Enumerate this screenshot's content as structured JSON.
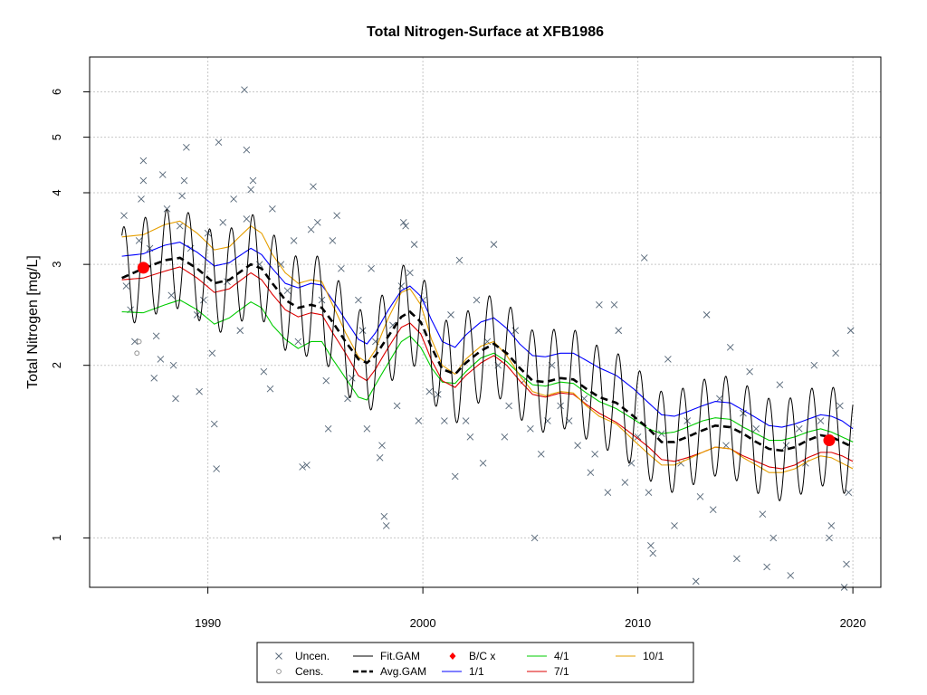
{
  "colors": {
    "fit_gam": "#000000",
    "avg_gam": "#000000",
    "bc": "#ff0000",
    "1/1": "#0000ff",
    "4/1": "#00cc00",
    "7/1": "#dd0000",
    "10/1": "#e69f00",
    "uncen": "#556677",
    "cens": "#888888",
    "grid": "#c8c8c8"
  },
  "chart_data": {
    "type": "line",
    "title": "Total Nitrogen-Surface at XFB1986",
    "xlabel": "",
    "ylabel": "Total Nitrogen [mg/L]",
    "log_y": true,
    "xlim": [
      1984.5,
      2021.3
    ],
    "ylim": [
      0.82,
      6.9
    ],
    "grid": true,
    "legend_position": "bottom-outside",
    "x_ticks": [
      1990,
      2000,
      2010,
      2020
    ],
    "x_tick_labels": [
      "1990",
      "2000",
      "2010",
      "2020"
    ],
    "y_ticks": [
      1,
      2,
      3,
      4,
      5,
      6
    ],
    "y_tick_labels": [
      "1",
      "2",
      "3",
      "4",
      "5",
      "6"
    ],
    "legend": [
      {
        "label": "Uncen.",
        "kind": "cross",
        "color_key": "uncen"
      },
      {
        "label": "Cens.",
        "kind": "circle",
        "color_key": "cens"
      },
      {
        "label": "Fit.GAM",
        "kind": "line",
        "color_key": "fit_gam"
      },
      {
        "label": "Avg.GAM",
        "kind": "dash",
        "color_key": "avg_gam"
      },
      {
        "label": "B/C x",
        "kind": "diamond",
        "color_key": "bc"
      },
      {
        "label": "1/1",
        "kind": "line",
        "color_key": "1/1"
      },
      {
        "label": "4/1",
        "kind": "line",
        "color_key": "4/1"
      },
      {
        "label": "7/1",
        "kind": "line",
        "color_key": "7/1"
      },
      {
        "label": "10/1",
        "kind": "line",
        "color_key": "10/1"
      }
    ],
    "avg_gam": {
      "x": [
        1986.0,
        1987.0,
        1988.0,
        1988.7,
        1989.5,
        1990.3,
        1991.0,
        1992.0,
        1992.5,
        1993.0,
        1993.6,
        1994.2,
        1994.8,
        1995.3,
        1995.8,
        1996.4,
        1997.0,
        1997.4,
        1997.8,
        1998.4,
        1999.0,
        1999.4,
        1999.9,
        2000.4,
        2000.9,
        2001.5,
        2002.0,
        2002.7,
        2003.3,
        2003.9,
        2004.5,
        2005.1,
        2005.7,
        2006.4,
        2007.0,
        2007.6,
        2008.2,
        2009.0,
        2009.8,
        2010.5,
        2011.1,
        2011.7,
        2012.3,
        2013.0,
        2013.6,
        2014.3,
        2014.9,
        2015.5,
        2016.1,
        2016.7,
        2017.3,
        2017.9,
        2018.5,
        2019.0,
        2019.5,
        2020.0
      ],
      "y": [
        2.84,
        2.95,
        3.05,
        3.08,
        2.95,
        2.78,
        2.82,
        3.0,
        2.95,
        2.78,
        2.6,
        2.52,
        2.55,
        2.52,
        2.38,
        2.2,
        2.05,
        2.02,
        2.08,
        2.25,
        2.43,
        2.48,
        2.38,
        2.15,
        1.97,
        1.93,
        2.02,
        2.12,
        2.18,
        2.1,
        1.98,
        1.88,
        1.87,
        1.9,
        1.89,
        1.82,
        1.76,
        1.72,
        1.63,
        1.55,
        1.47,
        1.47,
        1.5,
        1.54,
        1.57,
        1.56,
        1.52,
        1.47,
        1.43,
        1.42,
        1.44,
        1.48,
        1.51,
        1.5,
        1.47,
        1.44
      ]
    },
    "flow_1_1": {
      "x": [
        1986.0,
        1987.0,
        1988.0,
        1988.7,
        1989.5,
        1990.3,
        1991.0,
        1992.0,
        1992.5,
        1993.0,
        1993.6,
        1994.2,
        1994.8,
        1995.3,
        1995.8,
        1996.4,
        1997.0,
        1997.4,
        1997.8,
        1998.4,
        1999.0,
        1999.4,
        1999.9,
        2000.4,
        2000.9,
        2001.5,
        2002.0,
        2002.7,
        2003.3,
        2003.9,
        2004.5,
        2005.1,
        2005.7,
        2006.4,
        2007.0,
        2007.6,
        2008.2,
        2009.0,
        2009.8,
        2010.5,
        2011.1,
        2011.7,
        2012.3,
        2013.0,
        2013.6,
        2014.3,
        2014.9,
        2015.5,
        2016.1,
        2016.7,
        2017.3,
        2017.9,
        2018.5,
        2019.0,
        2019.5,
        2020.0
      ],
      "y": [
        3.1,
        3.13,
        3.24,
        3.28,
        3.15,
        2.98,
        3.02,
        3.2,
        3.12,
        2.95,
        2.78,
        2.73,
        2.78,
        2.76,
        2.6,
        2.4,
        2.22,
        2.18,
        2.28,
        2.5,
        2.7,
        2.75,
        2.64,
        2.4,
        2.2,
        2.15,
        2.26,
        2.38,
        2.42,
        2.32,
        2.18,
        2.08,
        2.07,
        2.1,
        2.1,
        2.04,
        1.98,
        1.92,
        1.82,
        1.72,
        1.64,
        1.63,
        1.66,
        1.7,
        1.73,
        1.72,
        1.67,
        1.62,
        1.57,
        1.56,
        1.58,
        1.61,
        1.64,
        1.63,
        1.6,
        1.55
      ]
    },
    "flow_4_1": {
      "x": [
        1986.0,
        1987.0,
        1988.0,
        1988.7,
        1989.5,
        1990.3,
        1991.0,
        1992.0,
        1992.5,
        1993.0,
        1993.6,
        1994.2,
        1994.8,
        1995.3,
        1995.8,
        1996.4,
        1997.0,
        1997.4,
        1997.8,
        1998.4,
        1999.0,
        1999.4,
        1999.9,
        2000.4,
        2000.9,
        2001.5,
        2002.0,
        2002.7,
        2003.3,
        2003.9,
        2004.5,
        2005.1,
        2005.7,
        2006.4,
        2007.0,
        2007.6,
        2008.2,
        2009.0,
        2009.8,
        2010.5,
        2011.1,
        2011.7,
        2012.3,
        2013.0,
        2013.6,
        2014.3,
        2014.9,
        2015.5,
        2016.1,
        2016.7,
        2017.3,
        2017.9,
        2018.5,
        2019.0,
        2019.5,
        2020.0
      ],
      "y": [
        2.48,
        2.47,
        2.55,
        2.6,
        2.5,
        2.36,
        2.42,
        2.58,
        2.52,
        2.35,
        2.22,
        2.14,
        2.2,
        2.2,
        2.05,
        1.9,
        1.76,
        1.74,
        1.85,
        2.02,
        2.2,
        2.25,
        2.15,
        1.98,
        1.87,
        1.86,
        1.95,
        2.06,
        2.1,
        2.03,
        1.93,
        1.85,
        1.84,
        1.87,
        1.86,
        1.79,
        1.73,
        1.68,
        1.61,
        1.55,
        1.52,
        1.53,
        1.56,
        1.6,
        1.62,
        1.61,
        1.56,
        1.52,
        1.48,
        1.48,
        1.5,
        1.53,
        1.55,
        1.53,
        1.5,
        1.47
      ]
    },
    "flow_7_1": {
      "x": [
        1986.0,
        1987.0,
        1988.0,
        1988.7,
        1989.5,
        1990.3,
        1991.0,
        1992.0,
        1992.5,
        1993.0,
        1993.6,
        1994.2,
        1994.8,
        1995.3,
        1995.8,
        1996.4,
        1997.0,
        1997.4,
        1997.8,
        1998.4,
        1999.0,
        1999.4,
        1999.9,
        2000.4,
        2000.9,
        2001.5,
        2002.0,
        2002.7,
        2003.3,
        2003.9,
        2004.5,
        2005.1,
        2005.7,
        2006.4,
        2007.0,
        2007.6,
        2008.2,
        2009.0,
        2009.8,
        2010.5,
        2011.1,
        2011.7,
        2012.3,
        2013.0,
        2013.6,
        2014.3,
        2014.9,
        2015.5,
        2016.1,
        2016.7,
        2017.3,
        2017.9,
        2018.5,
        2019.0,
        2019.5,
        2020.0
      ],
      "y": [
        2.82,
        2.84,
        2.92,
        2.97,
        2.84,
        2.68,
        2.72,
        2.9,
        2.82,
        2.66,
        2.5,
        2.43,
        2.47,
        2.45,
        2.28,
        2.1,
        1.92,
        1.88,
        1.97,
        2.15,
        2.33,
        2.37,
        2.27,
        2.04,
        1.88,
        1.83,
        1.92,
        2.02,
        2.08,
        2.0,
        1.88,
        1.78,
        1.76,
        1.79,
        1.78,
        1.71,
        1.65,
        1.59,
        1.51,
        1.44,
        1.37,
        1.36,
        1.38,
        1.41,
        1.44,
        1.43,
        1.39,
        1.36,
        1.33,
        1.32,
        1.34,
        1.38,
        1.41,
        1.41,
        1.39,
        1.36
      ]
    },
    "flow_10_1": {
      "x": [
        1986.0,
        1987.0,
        1988.0,
        1988.7,
        1989.5,
        1990.3,
        1991.0,
        1992.0,
        1992.5,
        1993.0,
        1993.6,
        1994.2,
        1994.8,
        1995.3,
        1995.8,
        1996.4,
        1997.0,
        1997.4,
        1997.8,
        1998.4,
        1999.0,
        1999.4,
        1999.9,
        2000.4,
        2000.9,
        2001.5,
        2002.0,
        2002.7,
        2003.3,
        2003.9,
        2004.5,
        2005.1,
        2005.7,
        2006.4,
        2007.0,
        2007.6,
        2008.2,
        2009.0,
        2009.8,
        2010.5,
        2011.1,
        2011.7,
        2012.3,
        2013.0,
        2013.6,
        2014.3,
        2014.9,
        2015.5,
        2016.1,
        2016.7,
        2017.3,
        2017.9,
        2018.5,
        2019.0,
        2019.5,
        2020.0
      ],
      "y": [
        3.35,
        3.38,
        3.52,
        3.57,
        3.4,
        3.18,
        3.22,
        3.5,
        3.4,
        3.12,
        2.9,
        2.78,
        2.82,
        2.8,
        2.55,
        2.28,
        2.07,
        2.02,
        2.13,
        2.42,
        2.68,
        2.72,
        2.55,
        2.22,
        2.0,
        1.93,
        2.05,
        2.16,
        2.2,
        2.08,
        1.92,
        1.8,
        1.77,
        1.8,
        1.79,
        1.7,
        1.63,
        1.58,
        1.48,
        1.4,
        1.34,
        1.34,
        1.37,
        1.41,
        1.44,
        1.43,
        1.38,
        1.34,
        1.3,
        1.3,
        1.32,
        1.36,
        1.39,
        1.38,
        1.35,
        1.32
      ]
    },
    "fit_gam": {
      "seasonal_ratio": 1.5,
      "cycles_per_year": 1,
      "baseline": "avg_gam"
    },
    "bc_points": [
      {
        "x": 1987.0,
        "y": 2.96
      },
      {
        "x": 2018.9,
        "y": 1.48
      }
    ],
    "censored_points": [
      {
        "x": 1986.7,
        "y": 2.1
      },
      {
        "x": 1986.8,
        "y": 2.2
      }
    ],
    "uncensored_points": [
      {
        "x": 1986.1,
        "y": 3.65
      },
      {
        "x": 1986.2,
        "y": 2.75
      },
      {
        "x": 1986.4,
        "y": 2.5
      },
      {
        "x": 1986.6,
        "y": 2.2
      },
      {
        "x": 1986.8,
        "y": 3.3
      },
      {
        "x": 1986.9,
        "y": 3.9
      },
      {
        "x": 1987.0,
        "y": 4.55
      },
      {
        "x": 1987.0,
        "y": 4.2
      },
      {
        "x": 1987.3,
        "y": 3.2
      },
      {
        "x": 1987.5,
        "y": 1.9
      },
      {
        "x": 1987.6,
        "y": 2.25
      },
      {
        "x": 1987.8,
        "y": 2.05
      },
      {
        "x": 1987.9,
        "y": 4.3
      },
      {
        "x": 1988.1,
        "y": 3.75
      },
      {
        "x": 1988.3,
        "y": 2.65
      },
      {
        "x": 1988.4,
        "y": 2.0
      },
      {
        "x": 1988.5,
        "y": 1.75
      },
      {
        "x": 1988.7,
        "y": 3.5
      },
      {
        "x": 1988.8,
        "y": 3.95
      },
      {
        "x": 1988.9,
        "y": 4.2
      },
      {
        "x": 1989.0,
        "y": 4.8
      },
      {
        "x": 1989.2,
        "y": 3.2
      },
      {
        "x": 1989.5,
        "y": 2.45
      },
      {
        "x": 1989.6,
        "y": 1.8
      },
      {
        "x": 1989.8,
        "y": 2.6
      },
      {
        "x": 1990.0,
        "y": 3.4
      },
      {
        "x": 1990.2,
        "y": 2.1
      },
      {
        "x": 1990.3,
        "y": 1.58
      },
      {
        "x": 1990.4,
        "y": 1.32
      },
      {
        "x": 1990.5,
        "y": 4.9
      },
      {
        "x": 1990.7,
        "y": 3.55
      },
      {
        "x": 1990.9,
        "y": 2.8
      },
      {
        "x": 1991.2,
        "y": 3.9
      },
      {
        "x": 1991.5,
        "y": 2.3
      },
      {
        "x": 1991.8,
        "y": 3.6
      },
      {
        "x": 1992.0,
        "y": 4.05
      },
      {
        "x": 1992.1,
        "y": 4.2
      },
      {
        "x": 1991.7,
        "y": 6.05
      },
      {
        "x": 1991.8,
        "y": 4.75
      },
      {
        "x": 1992.4,
        "y": 3.0
      },
      {
        "x": 1992.6,
        "y": 1.95
      },
      {
        "x": 1992.9,
        "y": 1.82
      },
      {
        "x": 1993.0,
        "y": 3.75
      },
      {
        "x": 1993.4,
        "y": 3.0
      },
      {
        "x": 1993.7,
        "y": 2.7
      },
      {
        "x": 1994.0,
        "y": 3.3
      },
      {
        "x": 1994.2,
        "y": 2.2
      },
      {
        "x": 1994.4,
        "y": 1.33
      },
      {
        "x": 1994.6,
        "y": 1.34
      },
      {
        "x": 1994.8,
        "y": 3.45
      },
      {
        "x": 1994.9,
        "y": 4.1
      },
      {
        "x": 1995.1,
        "y": 3.55
      },
      {
        "x": 1995.3,
        "y": 2.6
      },
      {
        "x": 1995.5,
        "y": 1.88
      },
      {
        "x": 1995.6,
        "y": 1.55
      },
      {
        "x": 1995.8,
        "y": 3.3
      },
      {
        "x": 1996.0,
        "y": 3.65
      },
      {
        "x": 1996.2,
        "y": 2.95
      },
      {
        "x": 1996.5,
        "y": 1.75
      },
      {
        "x": 1996.7,
        "y": 1.9
      },
      {
        "x": 1997.0,
        "y": 2.6
      },
      {
        "x": 1997.2,
        "y": 2.3
      },
      {
        "x": 1997.4,
        "y": 1.55
      },
      {
        "x": 1997.6,
        "y": 2.95
      },
      {
        "x": 1997.8,
        "y": 2.2
      },
      {
        "x": 1998.0,
        "y": 1.38
      },
      {
        "x": 1998.1,
        "y": 1.45
      },
      {
        "x": 1998.2,
        "y": 1.09
      },
      {
        "x": 1998.3,
        "y": 1.05
      },
      {
        "x": 1998.6,
        "y": 2.35
      },
      {
        "x": 1998.8,
        "y": 1.7
      },
      {
        "x": 1999.0,
        "y": 2.75
      },
      {
        "x": 1999.1,
        "y": 3.55
      },
      {
        "x": 1999.2,
        "y": 3.5
      },
      {
        "x": 1999.4,
        "y": 2.9
      },
      {
        "x": 1999.6,
        "y": 3.25
      },
      {
        "x": 1999.8,
        "y": 1.6
      },
      {
        "x": 2000.0,
        "y": 2.6
      },
      {
        "x": 2000.3,
        "y": 1.8
      },
      {
        "x": 2000.7,
        "y": 1.78
      },
      {
        "x": 2001.0,
        "y": 1.6
      },
      {
        "x": 2001.3,
        "y": 2.45
      },
      {
        "x": 2001.5,
        "y": 1.28
      },
      {
        "x": 2001.7,
        "y": 3.05
      },
      {
        "x": 2002.0,
        "y": 1.6
      },
      {
        "x": 2002.2,
        "y": 1.5
      },
      {
        "x": 2002.5,
        "y": 2.6
      },
      {
        "x": 2002.8,
        "y": 1.35
      },
      {
        "x": 2003.0,
        "y": 2.2
      },
      {
        "x": 2003.3,
        "y": 3.25
      },
      {
        "x": 2003.5,
        "y": 2.0
      },
      {
        "x": 2003.8,
        "y": 1.5
      },
      {
        "x": 2004.0,
        "y": 1.7
      },
      {
        "x": 2004.3,
        "y": 2.3
      },
      {
        "x": 2004.7,
        "y": 1.88
      },
      {
        "x": 2005.0,
        "y": 1.55
      },
      {
        "x": 2005.2,
        "y": 1.0
      },
      {
        "x": 2005.5,
        "y": 1.4
      },
      {
        "x": 2005.8,
        "y": 1.6
      },
      {
        "x": 2006.0,
        "y": 2.0
      },
      {
        "x": 2006.4,
        "y": 1.7
      },
      {
        "x": 2006.8,
        "y": 1.6
      },
      {
        "x": 2007.2,
        "y": 1.45
      },
      {
        "x": 2007.5,
        "y": 1.75
      },
      {
        "x": 2007.8,
        "y": 1.3
      },
      {
        "x": 2008.0,
        "y": 1.4
      },
      {
        "x": 2008.2,
        "y": 2.55
      },
      {
        "x": 2008.6,
        "y": 1.2
      },
      {
        "x": 2008.9,
        "y": 2.55
      },
      {
        "x": 2009.1,
        "y": 2.3
      },
      {
        "x": 2009.4,
        "y": 1.25
      },
      {
        "x": 2009.7,
        "y": 1.35
      },
      {
        "x": 2010.0,
        "y": 1.5
      },
      {
        "x": 2010.3,
        "y": 3.08
      },
      {
        "x": 2010.5,
        "y": 1.2
      },
      {
        "x": 2010.6,
        "y": 0.97
      },
      {
        "x": 2010.7,
        "y": 0.94
      },
      {
        "x": 2011.1,
        "y": 1.52
      },
      {
        "x": 2011.4,
        "y": 2.05
      },
      {
        "x": 2011.7,
        "y": 1.05
      },
      {
        "x": 2012.0,
        "y": 1.35
      },
      {
        "x": 2012.3,
        "y": 1.6
      },
      {
        "x": 2012.7,
        "y": 0.84
      },
      {
        "x": 2012.9,
        "y": 1.18
      },
      {
        "x": 2013.2,
        "y": 2.45
      },
      {
        "x": 2013.5,
        "y": 1.12
      },
      {
        "x": 2013.8,
        "y": 1.75
      },
      {
        "x": 2014.1,
        "y": 1.45
      },
      {
        "x": 2014.3,
        "y": 2.15
      },
      {
        "x": 2014.6,
        "y": 0.92
      },
      {
        "x": 2014.9,
        "y": 1.65
      },
      {
        "x": 2015.2,
        "y": 1.95
      },
      {
        "x": 2015.5,
        "y": 1.55
      },
      {
        "x": 2015.8,
        "y": 1.1
      },
      {
        "x": 2016.0,
        "y": 0.89
      },
      {
        "x": 2016.3,
        "y": 1.0
      },
      {
        "x": 2016.6,
        "y": 1.85
      },
      {
        "x": 2016.9,
        "y": 1.45
      },
      {
        "x": 2017.1,
        "y": 0.86
      },
      {
        "x": 2017.5,
        "y": 1.55
      },
      {
        "x": 2017.8,
        "y": 1.35
      },
      {
        "x": 2018.2,
        "y": 2.0
      },
      {
        "x": 2018.5,
        "y": 1.6
      },
      {
        "x": 2018.9,
        "y": 1.0
      },
      {
        "x": 2019.0,
        "y": 1.05
      },
      {
        "x": 2019.2,
        "y": 2.1
      },
      {
        "x": 2019.4,
        "y": 1.7
      },
      {
        "x": 2019.6,
        "y": 0.82
      },
      {
        "x": 2019.7,
        "y": 0.9
      },
      {
        "x": 2019.9,
        "y": 2.3
      },
      {
        "x": 2019.8,
        "y": 1.2
      }
    ]
  }
}
